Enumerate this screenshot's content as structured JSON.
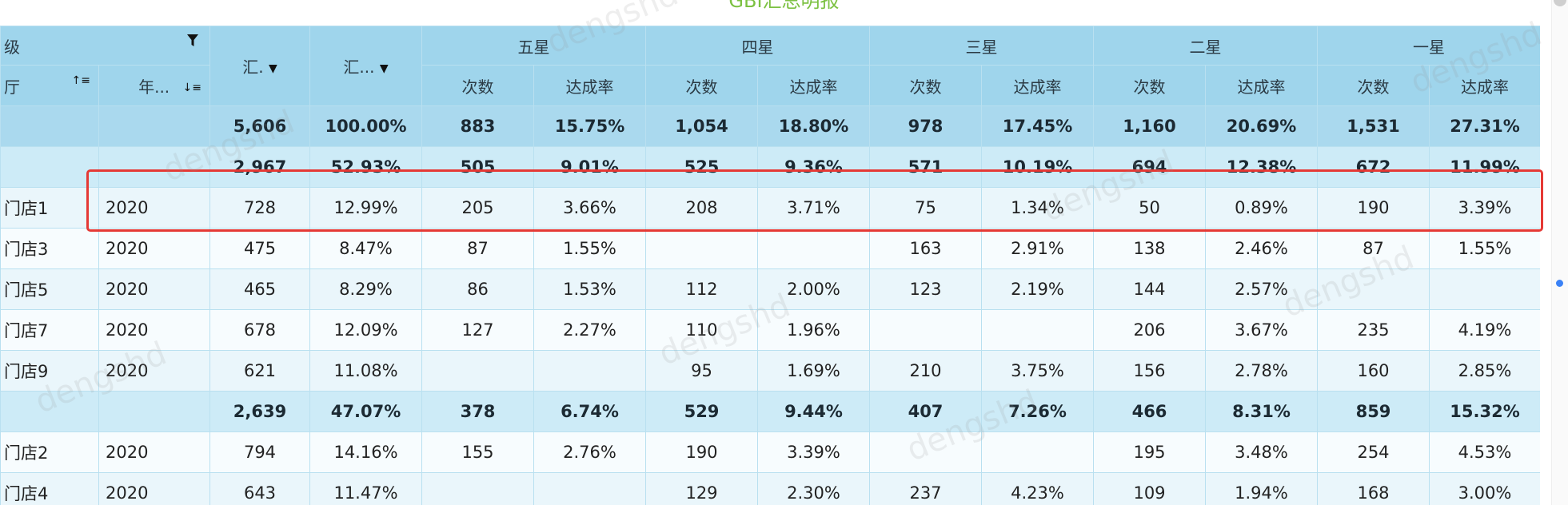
{
  "title": "GBI汇总明报",
  "watermark": "dengshd",
  "header": {
    "level_label": "级",
    "hall_label": "厅",
    "year_label": "年...",
    "sum_count_label": "汇.",
    "sum_rate_label": "汇...",
    "groups": [
      "五星",
      "四星",
      "三星",
      "二星",
      "一星"
    ],
    "count_label": "次数",
    "rate_label": "达成率"
  },
  "rows": [
    {
      "kind": "total",
      "store": "",
      "year": "",
      "cells": [
        "5,606",
        "100.00%",
        "883",
        "15.75%",
        "1,054",
        "18.80%",
        "978",
        "17.45%",
        "1,160",
        "20.69%",
        "1,531",
        "27.31%"
      ]
    },
    {
      "kind": "group",
      "store": "",
      "year": "",
      "cells": [
        "2,967",
        "52.93%",
        "505",
        "9.01%",
        "525",
        "9.36%",
        "571",
        "10.19%",
        "694",
        "12.38%",
        "672",
        "11.99%"
      ]
    },
    {
      "kind": "r0",
      "store": "门店1",
      "year": "2020",
      "cells": [
        "728",
        "12.99%",
        "205",
        "3.66%",
        "208",
        "3.71%",
        "75",
        "1.34%",
        "50",
        "0.89%",
        "190",
        "3.39%"
      ]
    },
    {
      "kind": "r1",
      "store": "门店3",
      "year": "2020",
      "cells": [
        "475",
        "8.47%",
        "87",
        "1.55%",
        "",
        "",
        "163",
        "2.91%",
        "138",
        "2.46%",
        "87",
        "1.55%"
      ]
    },
    {
      "kind": "r0",
      "store": "门店5",
      "year": "2020",
      "cells": [
        "465",
        "8.29%",
        "86",
        "1.53%",
        "112",
        "2.00%",
        "123",
        "2.19%",
        "144",
        "2.57%",
        "",
        ""
      ]
    },
    {
      "kind": "r1",
      "store": "门店7",
      "year": "2020",
      "cells": [
        "678",
        "12.09%",
        "127",
        "2.27%",
        "110",
        "1.96%",
        "",
        "",
        "206",
        "3.67%",
        "235",
        "4.19%"
      ]
    },
    {
      "kind": "r0",
      "store": "门店9",
      "year": "2020",
      "cells": [
        "621",
        "11.08%",
        "",
        "",
        "95",
        "1.69%",
        "210",
        "3.75%",
        "156",
        "2.78%",
        "160",
        "2.85%"
      ]
    },
    {
      "kind": "group",
      "store": "",
      "year": "",
      "cells": [
        "2,639",
        "47.07%",
        "378",
        "6.74%",
        "529",
        "9.44%",
        "407",
        "7.26%",
        "466",
        "8.31%",
        "859",
        "15.32%"
      ]
    },
    {
      "kind": "r1",
      "store": "门店2",
      "year": "2020",
      "cells": [
        "794",
        "14.16%",
        "155",
        "2.76%",
        "190",
        "3.39%",
        "",
        "",
        "195",
        "3.48%",
        "254",
        "4.53%"
      ]
    },
    {
      "kind": "r0",
      "store": "门店4",
      "year": "2020",
      "cells": [
        "643",
        "11.47%",
        "",
        "",
        "129",
        "2.30%",
        "237",
        "4.23%",
        "109",
        "1.94%",
        "168",
        "3.00%"
      ]
    }
  ],
  "colors": {
    "header": "#9fd5ec",
    "total": "#aad9ee",
    "group": "#cdebf7",
    "highlight": "#e53935",
    "title": "#7cc142"
  }
}
